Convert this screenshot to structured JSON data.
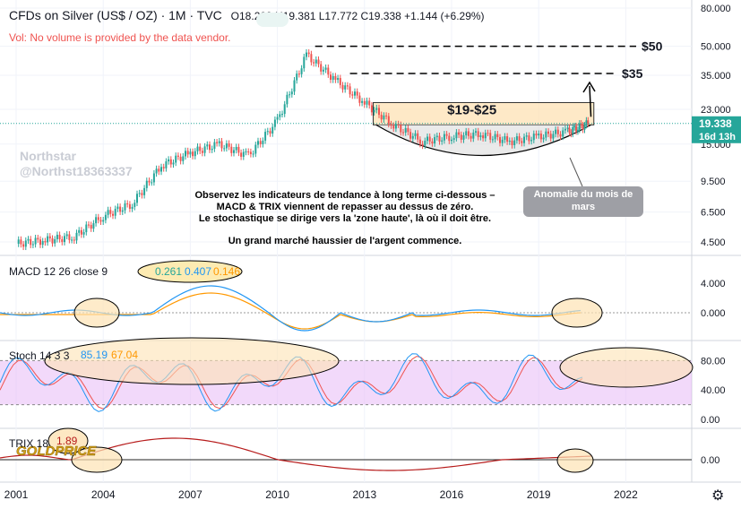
{
  "header": {
    "symbol": "CFDs on Silver (US$ / OZ) · 1M · TVC",
    "ohlc": "O18.209 H19.381 L17.772 C19.338 +1.144 (+6.29%)",
    "volume_note": "Vol: No volume is provided by the data vendor."
  },
  "watermark": {
    "line1": "Northstar",
    "line2": "@Northst18363337"
  },
  "annotations": {
    "note_lines": [
      "Observez les indicateurs de tendance à long terme ci-dessous –",
      "MACD & TRIX viennent de repasser au dessus de zéro.",
      "Le stochastique se dirige vers la 'zone haute', là où il doit être.",
      "Un grand marché haussier de l'argent commence."
    ],
    "anomaly": "Anomalie du mois de mars",
    "range_label": "$19-$25",
    "target_50": "$50",
    "target_35": "$35"
  },
  "price_axis": {
    "ticks": [
      "80.000",
      "50.000",
      "35.000",
      "23.000",
      "15.000",
      "9.500",
      "6.500",
      "4.500"
    ],
    "last_price": "19.338",
    "countdown": "16d 13h"
  },
  "x_axis": {
    "ticks": [
      "2001",
      "2004",
      "2007",
      "2010",
      "2013",
      "2016",
      "2019",
      "2022"
    ]
  },
  "macd": {
    "label": "MACD 12 26 close 9",
    "v1": "0.261",
    "v2": "0.407",
    "v3": "0.146",
    "ticks": [
      "4.000",
      "0.000"
    ]
  },
  "stoch": {
    "label": "Stoch 14 3 3",
    "k": "85.19",
    "d": "67.04",
    "ticks": [
      "80.00",
      "40.00",
      "0.00"
    ]
  },
  "trix": {
    "label": "TRIX 18",
    "value": "1.89",
    "ticks": [
      "0.00"
    ]
  },
  "logo": "GOLDPRICE",
  "colors": {
    "up": "#26a69a",
    "down": "#ef5350",
    "macd": "#2196f3",
    "signal": "#ff9800",
    "stoch_k": "#2196f3",
    "stoch_d": "#ef5350",
    "trix": "#b71c1c",
    "last_price": "#26a69a"
  },
  "chart_data": {
    "type": "line",
    "x": [
      2001,
      2002,
      2003,
      2004,
      2005,
      2006,
      2007,
      2008,
      2009,
      2010,
      2011,
      2012,
      2013,
      2014,
      2015,
      2016,
      2017,
      2018,
      2019,
      2020,
      2020.7
    ],
    "series": [
      {
        "values": [
          4.4,
          4.6,
          4.8,
          6.2,
          7.2,
          11.5,
          13.5,
          15,
          13,
          20,
          45,
          33,
          25,
          19,
          15.5,
          16.5,
          17,
          15.5,
          16.5,
          17.5,
          19.3
        ]
      }
    ]
  }
}
